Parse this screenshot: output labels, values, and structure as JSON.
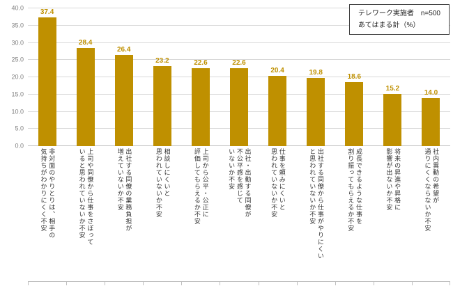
{
  "legend": {
    "line1": "テレワーク実施者　n=500",
    "line2": "あてはまる計（%）"
  },
  "chart_data": {
    "type": "bar",
    "title": "",
    "categories": [
      "非対面のやりとりは、相手の\n気持ちがわかりにくく不安",
      "上司や同僚から仕事をさぼって\nいると思われていないか不安",
      "出社する同僚の業務負担が\n増えていないか不安",
      "相談しにくいと\n思われていないか不安",
      "上司から公平・公正に\n評価してもらえるか不安",
      "出社・出勤する同僚が\n不公平感を感じて\nいないか不安",
      "仕事を頼みにくいと\n思われていないか不安",
      "出社する同僚から仕事がやりにくい\nと思われていないか不安",
      "成長できるような仕事を\n割り振ってもらえるか不安",
      "将来の昇進や昇格に\n影響が出ないか不安",
      "社内異動の希望が\n通りにくくならないか不安"
    ],
    "values": [
      37.4,
      28.4,
      26.4,
      23.2,
      22.6,
      22.6,
      20.4,
      19.8,
      18.6,
      15.2,
      14.0
    ],
    "xlabel": "",
    "ylabel": "",
    "ylim": [
      0,
      40
    ],
    "ytick_interval": 5,
    "ytick_decimals": 1,
    "grid": true,
    "bar_color": "#BF9000",
    "value_label_color": "#BF9000",
    "ytick_color": "#808080",
    "legend_position": "top-right"
  }
}
